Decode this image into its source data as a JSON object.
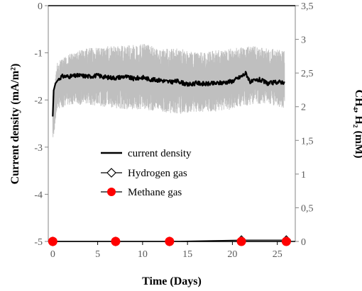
{
  "chart_data": {
    "type": "line",
    "xlabel": "Time (Days)",
    "ylabel_left": "Current density (mA/m²)",
    "ylabel_right": "CH₄, H₂ (mM)",
    "x_ticks": [
      "0",
      "5",
      "10",
      "15",
      "20",
      "25"
    ],
    "y_left_ticks": [
      "0",
      "-1",
      "-2",
      "-3",
      "-4",
      "-5"
    ],
    "y_right_ticks": [
      "3,5",
      "3",
      "2,5",
      "2",
      "1,5",
      "1",
      "0,5",
      "0"
    ],
    "xlim": [
      -0.5,
      27
    ],
    "ylim_left": [
      -5,
      0
    ],
    "ylim_right": [
      0,
      3.5
    ],
    "legend_position": "center-left",
    "series": [
      {
        "name": "current density",
        "axis": "left",
        "style": "line",
        "color": "#000000",
        "x": [
          0,
          0.1,
          0.3,
          0.6,
          1,
          2,
          3,
          4,
          5,
          6,
          7,
          8,
          9,
          10,
          11,
          12,
          13,
          14,
          15,
          16,
          17,
          18,
          19,
          20,
          21,
          21.5,
          22,
          23,
          24,
          25,
          25.8
        ],
        "y": [
          -2.35,
          -1.8,
          -1.65,
          -1.57,
          -1.5,
          -1.5,
          -1.48,
          -1.5,
          -1.48,
          -1.52,
          -1.53,
          -1.5,
          -1.55,
          -1.52,
          -1.57,
          -1.58,
          -1.62,
          -1.6,
          -1.68,
          -1.64,
          -1.66,
          -1.65,
          -1.63,
          -1.6,
          -1.5,
          -1.43,
          -1.62,
          -1.57,
          -1.65,
          -1.62,
          -1.62
        ]
      },
      {
        "name": "Hydrogen gas",
        "axis": "right",
        "style": "line-marker-diamond",
        "color": "#000000",
        "x": [
          0,
          7,
          13,
          21,
          26
        ],
        "y": [
          0,
          0,
          0,
          0.02,
          0.02
        ]
      },
      {
        "name": "Methane gas",
        "axis": "right",
        "style": "line-marker-circle",
        "color": "#ff0000",
        "x": [
          0,
          7,
          13,
          21,
          26
        ],
        "y": [
          0,
          0,
          0,
          0,
          0
        ]
      }
    ],
    "noise_band": {
      "axis": "left",
      "color": "#bfbfbf",
      "x": [
        0,
        0.5,
        2,
        4,
        6,
        8,
        10,
        12,
        14,
        16,
        18,
        20,
        22,
        24,
        25.8
      ],
      "upper": [
        -1.9,
        -1.2,
        -1.0,
        -0.9,
        -0.85,
        -0.85,
        -0.8,
        -0.9,
        -0.9,
        -1.0,
        -0.95,
        -0.9,
        -0.85,
        -0.9,
        -0.95
      ],
      "lower": [
        -2.9,
        -2.2,
        -2.1,
        -2.1,
        -2.15,
        -2.2,
        -2.2,
        -2.25,
        -2.3,
        -2.25,
        -2.25,
        -2.2,
        -2.1,
        -2.1,
        -2.2
      ]
    }
  }
}
